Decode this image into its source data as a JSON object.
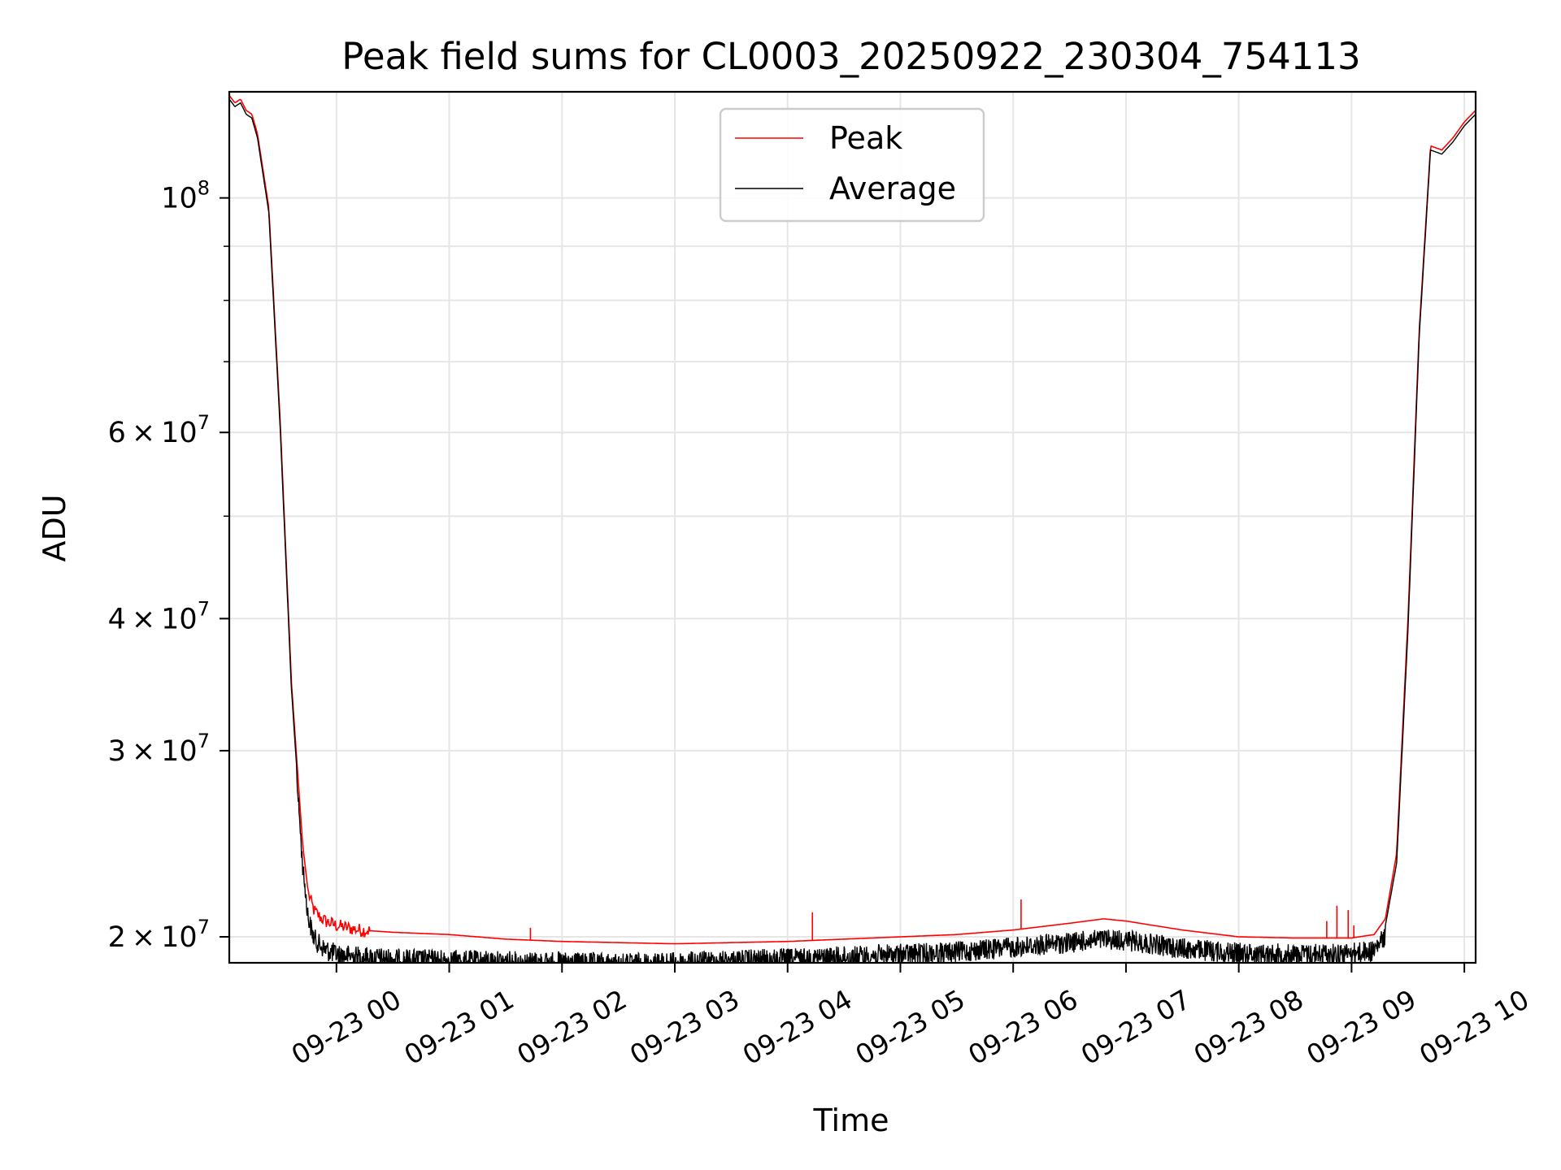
{
  "chart_data": {
    "type": "line",
    "title": "Peak field sums for CL0003_20250922_230304_754113",
    "xlabel": "Time",
    "ylabel": "ADU",
    "yscale": "log",
    "grid": true,
    "legend_position": "upper-center",
    "xlim": [
      -0.95,
      10.1
    ],
    "ylim": [
      18900000,
      126000000
    ],
    "x_units": "hours after 2025-09-23 00:00",
    "x_ticks": [
      {
        "value": 0,
        "label": "09-23 00"
      },
      {
        "value": 1,
        "label": "09-23 01"
      },
      {
        "value": 2,
        "label": "09-23 02"
      },
      {
        "value": 3,
        "label": "09-23 03"
      },
      {
        "value": 4,
        "label": "09-23 04"
      },
      {
        "value": 5,
        "label": "09-23 05"
      },
      {
        "value": 6,
        "label": "09-23 06"
      },
      {
        "value": 7,
        "label": "09-23 07"
      },
      {
        "value": 8,
        "label": "09-23 08"
      },
      {
        "value": 9,
        "label": "09-23 09"
      },
      {
        "value": 10,
        "label": "09-23 10"
      }
    ],
    "y_major_ticks": [
      {
        "value": 20000000,
        "mantissa": "2",
        "exponent": "7"
      },
      {
        "value": 30000000,
        "mantissa": "3",
        "exponent": "7"
      },
      {
        "value": 40000000,
        "mantissa": "4",
        "exponent": "7"
      },
      {
        "value": 60000000,
        "mantissa": "6",
        "exponent": "7"
      },
      {
        "value": 100000000,
        "mantissa": "",
        "exponent": "8"
      }
    ],
    "y_minor_ticks": [
      50000000,
      70000000,
      80000000,
      90000000
    ],
    "series": [
      {
        "name": "Peak",
        "color": "#ff0000",
        "x": [
          -0.95,
          -0.9,
          -0.85,
          -0.8,
          -0.75,
          -0.7,
          -0.6,
          -0.5,
          -0.4,
          -0.3,
          -0.25,
          -0.2,
          -0.15,
          -0.1,
          -0.05,
          0.0,
          0.2,
          0.5,
          1.0,
          1.5,
          2.0,
          2.5,
          3.0,
          3.5,
          4.0,
          4.5,
          5.0,
          5.5,
          6.0,
          6.5,
          6.8,
          7.0,
          7.5,
          8.0,
          8.5,
          9.0,
          9.2,
          9.3,
          9.4,
          9.5,
          9.6,
          9.7,
          9.8,
          9.9,
          10.0,
          10.1
        ],
        "y": [
          125000000,
          123000000,
          124000000,
          121000000,
          120000000,
          115000000,
          98000000,
          62000000,
          35000000,
          24500000,
          22000000,
          21200000,
          20900000,
          20700000,
          20600000,
          20500000,
          20300000,
          20200000,
          20100000,
          19900000,
          19800000,
          19750000,
          19700000,
          19750000,
          19800000,
          19900000,
          20000000,
          20100000,
          20300000,
          20600000,
          20800000,
          20700000,
          20300000,
          20000000,
          19950000,
          19950000,
          20100000,
          20800000,
          24000000,
          40000000,
          75000000,
          112000000,
          111000000,
          114000000,
          118000000,
          121000000
        ],
        "spikes": [
          {
            "x": 1.72,
            "y": 20400000
          },
          {
            "x": 4.22,
            "y": 21100000
          },
          {
            "x": 6.07,
            "y": 21700000
          },
          {
            "x": 8.78,
            "y": 20700000
          },
          {
            "x": 8.87,
            "y": 21400000
          },
          {
            "x": 8.97,
            "y": 21200000
          },
          {
            "x": 9.02,
            "y": 20500000
          }
        ]
      },
      {
        "name": "Average",
        "color": "#000000",
        "x": [
          -0.95,
          -0.9,
          -0.85,
          -0.8,
          -0.75,
          -0.7,
          -0.6,
          -0.5,
          -0.4,
          -0.3,
          -0.25,
          -0.2,
          -0.15,
          -0.1,
          -0.05,
          0.0,
          0.2,
          0.5,
          1.0,
          1.5,
          2.0,
          2.5,
          3.0,
          3.5,
          4.0,
          4.5,
          5.0,
          5.5,
          6.0,
          6.5,
          6.8,
          7.0,
          7.5,
          8.0,
          8.5,
          9.0,
          9.2,
          9.3,
          9.4,
          9.5,
          9.6,
          9.7,
          9.8,
          9.9,
          10.0,
          10.1
        ],
        "y": [
          124000000,
          122000000,
          123000000,
          120000000,
          119000000,
          114000000,
          97000000,
          61000000,
          34500000,
          23800000,
          21300000,
          20400000,
          20100000,
          19900000,
          19800000,
          19700000,
          19600000,
          19500000,
          19450000,
          19400000,
          19350000,
          19300000,
          19350000,
          19450000,
          19500000,
          19600000,
          19700000,
          19800000,
          20000000,
          20200000,
          20350000,
          20300000,
          19950000,
          19750000,
          19700000,
          19750000,
          19850000,
          20500000,
          23500000,
          39000000,
          74000000,
          111000000,
          110000000,
          113000000,
          117000000,
          120000000
        ],
        "noise_amplitude": 900000,
        "noise_range": [
          -0.35,
          9.3
        ]
      }
    ]
  }
}
